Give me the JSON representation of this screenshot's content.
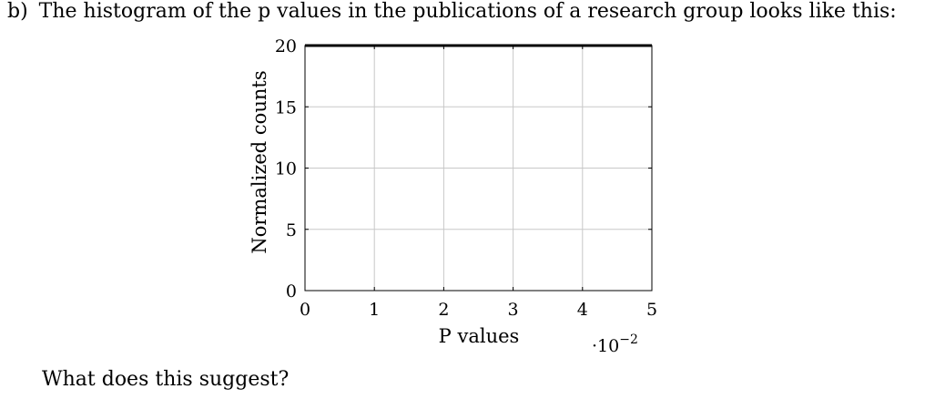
{
  "question": {
    "label": "b)",
    "text": "The histogram of the p values in the publications of a research group looks like this:"
  },
  "prompt": "What does this suggest?",
  "chart_data": {
    "type": "line",
    "title": "",
    "xlabel": "P values",
    "ylabel": "Normalized counts",
    "x_scale_label": "·10",
    "x_scale_exponent": "−2",
    "xlim": [
      0,
      5
    ],
    "ylim": [
      0,
      20
    ],
    "x_ticks": [
      0,
      1,
      2,
      3,
      4,
      5
    ],
    "y_ticks": [
      0,
      5,
      10,
      15,
      20
    ],
    "x_tick_labels": [
      "0",
      "1",
      "2",
      "3",
      "4",
      "5"
    ],
    "y_tick_labels": [
      "0",
      "5",
      "10",
      "15",
      "20"
    ],
    "grid": true,
    "series": [
      {
        "x": [
          0,
          5
        ],
        "y": [
          20,
          20
        ],
        "color": "#000000"
      }
    ]
  }
}
